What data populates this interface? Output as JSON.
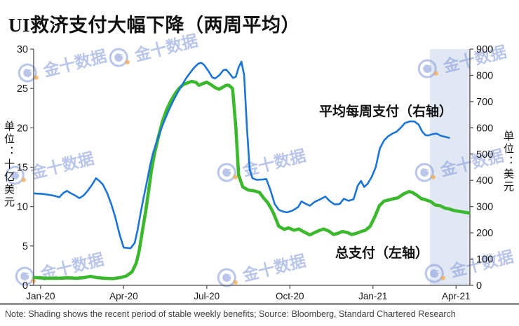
{
  "title": "UI救济支付大幅下降（两周平均）",
  "note": "Note: Shading shows the recent period of stable weekly benefits; Source: Bloomberg, Standard Chartered Research",
  "axes": {
    "left_unit": "单位：十亿美元",
    "right_unit": "单位：美元"
  },
  "watermark": {
    "text": "金十数据"
  },
  "chart_data": {
    "type": "line",
    "title": "UI救济支付大幅下降（两周平均）",
    "x_domain": [
      -0.25,
      15.5
    ],
    "x_ticks": [
      {
        "m": 0,
        "label": "Jan-20"
      },
      {
        "m": 3,
        "label": "Apr-20"
      },
      {
        "m": 6,
        "label": "Jul-20"
      },
      {
        "m": 9,
        "label": "Oct-20"
      },
      {
        "m": 12,
        "label": "Jan-21"
      },
      {
        "m": 15,
        "label": "Apr-21"
      }
    ],
    "left_axis": {
      "min": 0,
      "max": 30,
      "step": 5,
      "unit": "十亿美元"
    },
    "right_axis": {
      "min": 0,
      "max": 900,
      "step": 100,
      "unit": "美元"
    },
    "shading": {
      "from_month": 14.05,
      "to_month": 15.5,
      "color": "#e2e8f3",
      "meaning": "recent period of stable weekly benefits"
    },
    "series": [
      {
        "label": "平均每周支付（右轴）",
        "axis": "right",
        "color": "#1b74d6",
        "line_width": 2.6,
        "points": [
          [
            -0.23,
            350
          ],
          [
            0.1,
            348
          ],
          [
            0.45,
            342
          ],
          [
            0.68,
            336
          ],
          [
            0.82,
            352
          ],
          [
            0.95,
            360
          ],
          [
            1.1,
            350
          ],
          [
            1.25,
            342
          ],
          [
            1.4,
            332
          ],
          [
            1.55,
            342
          ],
          [
            1.7,
            360
          ],
          [
            1.85,
            382
          ],
          [
            2.0,
            408
          ],
          [
            2.12,
            398
          ],
          [
            2.25,
            384
          ],
          [
            2.4,
            352
          ],
          [
            2.55,
            310
          ],
          [
            2.7,
            258
          ],
          [
            2.85,
            195
          ],
          [
            3.0,
            144
          ],
          [
            3.25,
            141
          ],
          [
            3.4,
            162
          ],
          [
            3.5,
            210
          ],
          [
            3.62,
            280
          ],
          [
            3.73,
            340
          ],
          [
            3.85,
            400
          ],
          [
            3.95,
            455
          ],
          [
            4.05,
            500
          ],
          [
            4.2,
            550
          ],
          [
            4.35,
            595
          ],
          [
            4.5,
            635
          ],
          [
            4.65,
            672
          ],
          [
            4.8,
            705
          ],
          [
            4.95,
            735
          ],
          [
            5.1,
            762
          ],
          [
            5.25,
            788
          ],
          [
            5.4,
            810
          ],
          [
            5.55,
            830
          ],
          [
            5.7,
            845
          ],
          [
            5.8,
            848
          ],
          [
            5.9,
            840
          ],
          [
            6.05,
            818
          ],
          [
            6.2,
            792
          ],
          [
            6.3,
            788
          ],
          [
            6.45,
            800
          ],
          [
            6.6,
            820
          ],
          [
            6.7,
            822
          ],
          [
            6.8,
            810
          ],
          [
            6.95,
            790
          ],
          [
            7.05,
            795
          ],
          [
            7.15,
            830
          ],
          [
            7.25,
            852
          ],
          [
            7.35,
            800
          ],
          [
            7.45,
            600
          ],
          [
            7.55,
            440
          ],
          [
            7.65,
            408
          ],
          [
            7.8,
            402
          ],
          [
            8.0,
            403
          ],
          [
            8.15,
            405
          ],
          [
            8.3,
            362
          ],
          [
            8.45,
            310
          ],
          [
            8.6,
            288
          ],
          [
            8.75,
            281
          ],
          [
            8.9,
            278
          ],
          [
            9.1,
            285
          ],
          [
            9.3,
            298
          ],
          [
            9.42,
            320
          ],
          [
            9.55,
            312
          ],
          [
            9.72,
            303
          ],
          [
            9.9,
            318
          ],
          [
            10.1,
            328
          ],
          [
            10.28,
            338
          ],
          [
            10.45,
            320
          ],
          [
            10.62,
            308
          ],
          [
            10.8,
            310
          ],
          [
            10.95,
            330
          ],
          [
            11.12,
            322
          ],
          [
            11.3,
            328
          ],
          [
            11.45,
            380
          ],
          [
            11.57,
            398
          ],
          [
            11.68,
            375
          ],
          [
            11.8,
            386
          ],
          [
            11.95,
            412
          ],
          [
            12.1,
            450
          ],
          [
            12.25,
            522
          ],
          [
            12.4,
            552
          ],
          [
            12.55,
            568
          ],
          [
            12.7,
            578
          ],
          [
            12.85,
            585
          ],
          [
            13.0,
            600
          ],
          [
            13.15,
            618
          ],
          [
            13.35,
            625
          ],
          [
            13.5,
            624
          ],
          [
            13.65,
            612
          ],
          [
            13.78,
            585
          ],
          [
            13.9,
            572
          ],
          [
            14.0,
            571
          ],
          [
            14.15,
            576
          ],
          [
            14.3,
            578
          ],
          [
            14.45,
            570
          ],
          [
            14.6,
            566
          ],
          [
            14.75,
            562
          ]
        ]
      },
      {
        "label": "总支付（左轴）",
        "axis": "left",
        "color": "#3cb82e",
        "line_width": 4.6,
        "points": [
          [
            -0.23,
            1.0
          ],
          [
            0.2,
            0.9
          ],
          [
            0.6,
            0.9
          ],
          [
            1.0,
            0.95
          ],
          [
            1.3,
            0.9
          ],
          [
            1.6,
            1.0
          ],
          [
            1.8,
            1.15
          ],
          [
            2.0,
            1.0
          ],
          [
            2.3,
            0.9
          ],
          [
            2.6,
            0.85
          ],
          [
            2.9,
            1.0
          ],
          [
            3.1,
            1.2
          ],
          [
            3.3,
            1.7
          ],
          [
            3.45,
            2.8
          ],
          [
            3.55,
            4.2
          ],
          [
            3.68,
            7.0
          ],
          [
            3.8,
            9.5
          ],
          [
            3.9,
            12.0
          ],
          [
            4.0,
            14.5
          ],
          [
            4.1,
            16.5
          ],
          [
            4.25,
            18.8
          ],
          [
            4.4,
            20.8
          ],
          [
            4.55,
            22.3
          ],
          [
            4.7,
            23.4
          ],
          [
            4.85,
            24.3
          ],
          [
            5.0,
            25.0
          ],
          [
            5.15,
            25.5
          ],
          [
            5.3,
            25.7
          ],
          [
            5.45,
            25.9
          ],
          [
            5.6,
            25.8
          ],
          [
            5.72,
            25.4
          ],
          [
            5.85,
            25.6
          ],
          [
            6.0,
            25.8
          ],
          [
            6.15,
            25.5
          ],
          [
            6.3,
            25.1
          ],
          [
            6.45,
            24.9
          ],
          [
            6.6,
            25.2
          ],
          [
            6.7,
            25.4
          ],
          [
            6.8,
            25.4
          ],
          [
            6.93,
            25.0
          ],
          [
            7.05,
            20.0
          ],
          [
            7.15,
            14.0
          ],
          [
            7.3,
            12.5
          ],
          [
            7.5,
            12.1
          ],
          [
            7.7,
            12.0
          ],
          [
            7.9,
            11.8
          ],
          [
            8.05,
            11.1
          ],
          [
            8.2,
            10.5
          ],
          [
            8.35,
            9.6
          ],
          [
            8.45,
            8.8
          ],
          [
            8.6,
            7.5
          ],
          [
            8.8,
            7.1
          ],
          [
            8.95,
            7.3
          ],
          [
            9.15,
            7.0
          ],
          [
            9.33,
            7.15
          ],
          [
            9.55,
            6.7
          ],
          [
            9.72,
            6.4
          ],
          [
            9.9,
            6.7
          ],
          [
            10.08,
            7.0
          ],
          [
            10.22,
            7.15
          ],
          [
            10.4,
            6.9
          ],
          [
            10.58,
            6.45
          ],
          [
            10.73,
            6.6
          ],
          [
            10.9,
            6.85
          ],
          [
            11.08,
            6.7
          ],
          [
            11.23,
            6.45
          ],
          [
            11.4,
            6.6
          ],
          [
            11.58,
            6.85
          ],
          [
            11.73,
            7.0
          ],
          [
            11.9,
            7.5
          ],
          [
            12.08,
            8.8
          ],
          [
            12.23,
            10.1
          ],
          [
            12.4,
            10.7
          ],
          [
            12.58,
            10.85
          ],
          [
            12.75,
            11.0
          ],
          [
            12.9,
            11.1
          ],
          [
            13.1,
            11.6
          ],
          [
            13.3,
            11.9
          ],
          [
            13.42,
            11.8
          ],
          [
            13.6,
            11.4
          ],
          [
            13.75,
            11.0
          ],
          [
            13.92,
            10.85
          ],
          [
            14.1,
            10.6
          ],
          [
            14.25,
            10.2
          ],
          [
            14.43,
            10.1
          ],
          [
            14.6,
            9.8
          ],
          [
            14.75,
            9.7
          ],
          [
            14.93,
            9.5
          ],
          [
            15.1,
            9.4
          ],
          [
            15.27,
            9.3
          ],
          [
            15.45,
            9.2
          ]
        ]
      }
    ]
  }
}
